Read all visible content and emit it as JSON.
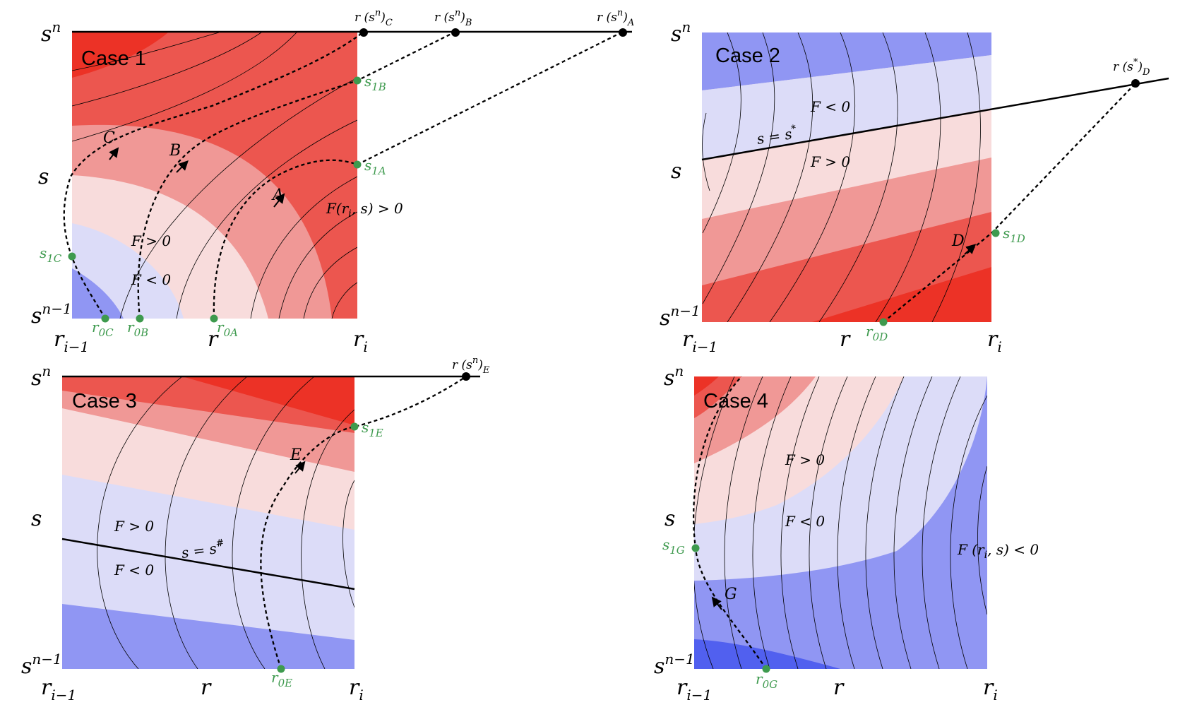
{
  "colors": {
    "red_levels": [
      "#ec3226",
      "#ec564f",
      "#f09896",
      "#f8dcdc"
    ],
    "blue_levels": [
      "#dcdcf8",
      "#9096f3",
      "#5160ef"
    ],
    "green_point": "#3e9a4e",
    "black": "#000000"
  },
  "panels": [
    {
      "id": "case1",
      "title": "Case 1",
      "y_top": "s",
      "y_top_sup": "n",
      "y_mid": "s",
      "y_bottom": "s",
      "y_bottom_sup": "n−1",
      "x_left": "r",
      "x_left_sub": "i−1",
      "x_mid": "r",
      "x_right": "r",
      "x_right_sub": "i",
      "region_labels": [
        "F > 0",
        "F < 0",
        "F(r",
        "i",
        ", s) > 0"
      ],
      "path_labels": [
        "A",
        "B",
        "C"
      ],
      "top_points": [
        {
          "base": "r (s",
          "sup": "n",
          "sub": "C"
        },
        {
          "base": "r (s",
          "sup": "n",
          "sub": "B"
        },
        {
          "base": "r (s",
          "sup": "n",
          "sub": "A"
        }
      ],
      "green_points": [
        {
          "base": "s",
          "sub": "1B"
        },
        {
          "base": "s",
          "sub": "1A"
        },
        {
          "base": "s",
          "sub": "1C"
        },
        {
          "base": "r",
          "sub": "0C"
        },
        {
          "base": "r",
          "sub": "0B"
        },
        {
          "base": "r",
          "sub": "0A"
        }
      ]
    },
    {
      "id": "case2",
      "title": "Case 2",
      "y_top": "s",
      "y_top_sup": "n",
      "y_mid": "s",
      "y_bottom": "s",
      "y_bottom_sup": "n−1",
      "x_left": "r",
      "x_left_sub": "i−1",
      "x_mid": "r",
      "x_right": "r",
      "x_right_sub": "i",
      "region_labels": [
        "F < 0",
        "s = s",
        "*",
        "F > 0"
      ],
      "path_labels": [
        "D"
      ],
      "top_points": [
        {
          "base": "r (s",
          "sup": "*",
          "sub": "D"
        }
      ],
      "green_points": [
        {
          "base": "s",
          "sub": "1D"
        },
        {
          "base": "r",
          "sub": "0D"
        }
      ]
    },
    {
      "id": "case3",
      "title": "Case 3",
      "y_top": "s",
      "y_top_sup": "n",
      "y_mid": "s",
      "y_bottom": "s",
      "y_bottom_sup": "n−1",
      "x_left": "r",
      "x_left_sub": "i−1",
      "x_mid": "r",
      "x_right": "r",
      "x_right_sub": "i",
      "region_labels": [
        "F > 0",
        "s = s",
        "#",
        "F < 0"
      ],
      "path_labels": [
        "E"
      ],
      "top_points": [
        {
          "base": "r (s",
          "sup": "n",
          "sub": "E"
        }
      ],
      "green_points": [
        {
          "base": "s",
          "sub": "1E"
        },
        {
          "base": "r",
          "sub": "0E"
        }
      ]
    },
    {
      "id": "case4",
      "title": "Case 4",
      "y_top": "s",
      "y_top_sup": "n",
      "y_mid": "s",
      "y_bottom": "s",
      "y_bottom_sup": "n−1",
      "x_left": "r",
      "x_left_sub": "i−1",
      "x_mid": "r",
      "x_right": "r",
      "x_right_sub": "i",
      "region_labels": [
        "F > 0",
        "F < 0",
        "F (r",
        "i",
        ", s) < 0"
      ],
      "path_labels": [
        "G"
      ],
      "top_points": [],
      "green_points": [
        {
          "base": "s",
          "sub": "1G"
        },
        {
          "base": "r",
          "sub": "0G"
        }
      ]
    }
  ]
}
